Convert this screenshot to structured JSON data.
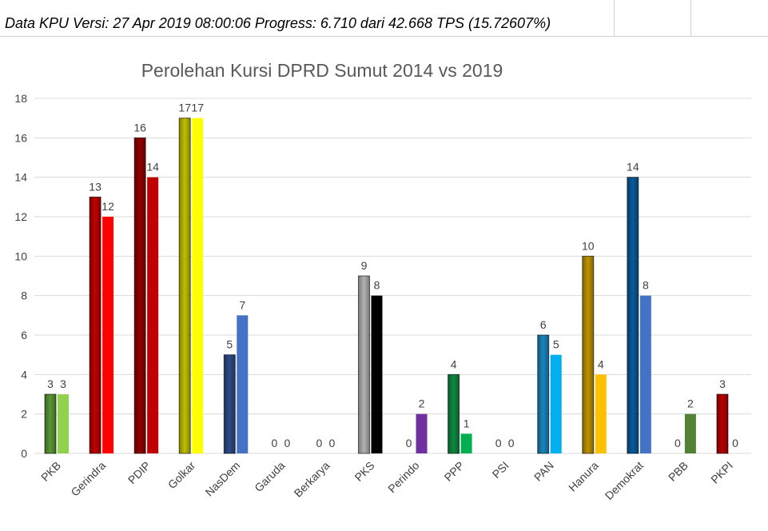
{
  "header": {
    "text": "Data KPU Versi: 27 Apr 2019 08:00:06 Progress: 6.710 dari 42.668 TPS (15.72607%)"
  },
  "chart_data": {
    "type": "bar",
    "title": "Perolehan Kursi DPRD Sumut 2014 vs 2019",
    "xlabel": "",
    "ylabel": "",
    "ylim": [
      0,
      18
    ],
    "yticks": [
      0,
      2,
      4,
      6,
      8,
      10,
      12,
      14,
      16,
      18
    ],
    "grid": true,
    "legend": "none",
    "categories": [
      "PKB",
      "Gerindra",
      "PDIP",
      "Golkar",
      "NasDem",
      "Garuda",
      "Berkarya",
      "PKS",
      "Perindo",
      "PPP",
      "PSI",
      "PAN",
      "Hanura",
      "Demokrat",
      "PBB",
      "PKPI"
    ],
    "series": [
      {
        "values": [
          3,
          13,
          16,
          17,
          5,
          0,
          0,
          9,
          0,
          4,
          0,
          6,
          10,
          14,
          0,
          3
        ]
      },
      {
        "values": [
          3,
          12,
          14,
          17,
          7,
          0,
          0,
          8,
          2,
          1,
          0,
          5,
          4,
          8,
          2,
          0
        ]
      }
    ],
    "colors_2014": [
      "#5f9e36",
      "#cc0000",
      "#990000",
      "#c9c900",
      "#2f4f8f",
      "#888888",
      "#888888",
      "#bbbbbb",
      "#7030a0",
      "#0e8f45",
      "#999999",
      "#1a8cc9",
      "#c89a00",
      "#0a5fa3",
      "#4a7a2c",
      "#c00000"
    ],
    "colors_2019": [
      "#92d050",
      "#ff0000",
      "#c00000",
      "#ffff00",
      "#4472c4",
      "#888888",
      "#888888",
      "#000000",
      "#7030a0",
      "#00b050",
      "#999999",
      "#00b0f0",
      "#ffc000",
      "#4472c4",
      "#548235",
      "#ff0000"
    ]
  }
}
